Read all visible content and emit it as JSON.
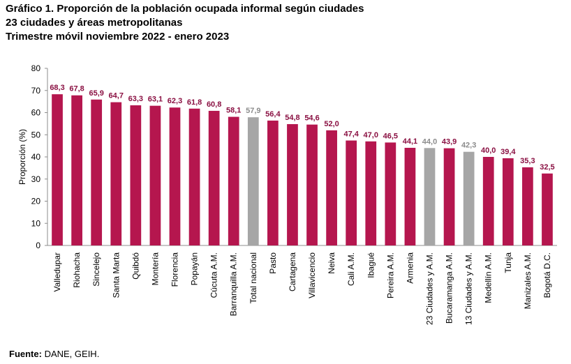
{
  "chart_data": {
    "type": "bar",
    "title": "Gráfico 1. Proporción de la población ocupada informal según ciudades",
    "subtitle_1": "23 ciudades y áreas metropolitanas",
    "subtitle_2": "Trimestre móvil noviembre 2022 - enero 2023",
    "xlabel": "",
    "ylabel": "Proporción (%)",
    "ylim": [
      0,
      80
    ],
    "yticks": [
      "0",
      "10",
      "20",
      "30",
      "40",
      "50",
      "60",
      "70",
      "80"
    ],
    "grid": false,
    "legend": "none",
    "colors": {
      "city": "#B5164E",
      "aggregate": "#A6A6A6",
      "city_label": "#8A1042",
      "aggregate_label": "#8C8C8C"
    },
    "categories": [
      "Valledupar",
      "Riohacha",
      "Sincelejo",
      "Santa Marta",
      "Quibdó",
      "Montería",
      "Florencia",
      "Popayán",
      "Cúcuta A.M.",
      "Barranquilla A.M.",
      "Total nacional",
      "Pasto",
      "Cartagena",
      "Villavicencio",
      "Neiva",
      "Cali A.M.",
      "Ibagué",
      "Pereira A.M.",
      "Armenia",
      "23 Ciudades y A.M.",
      "Bucaramanga A.M.",
      "13 Ciudades y A.M.",
      "Medellín A.M.",
      "Tunja",
      "Manizales A.M.",
      "Bogotá D.C."
    ],
    "values": [
      68.3,
      67.8,
      65.9,
      64.7,
      63.3,
      63.1,
      62.3,
      61.8,
      60.8,
      58.1,
      57.9,
      56.4,
      54.8,
      54.6,
      52.0,
      47.4,
      47.0,
      46.5,
      44.1,
      44.0,
      43.9,
      42.3,
      40.0,
      39.4,
      35.3,
      32.5
    ],
    "value_labels": [
      "68,3",
      "67,8",
      "65,9",
      "64,7",
      "63,3",
      "63,1",
      "62,3",
      "61,8",
      "60,8",
      "58,1",
      "57,9",
      "56,4",
      "54,8",
      "54,6",
      "52,0",
      "47,4",
      "47,0",
      "46,5",
      "44,1",
      "44,0",
      "43,9",
      "42,3",
      "40,0",
      "39,4",
      "35,3",
      "32,5"
    ],
    "aggregate_categories": [
      "Total nacional",
      "23 Ciudades y A.M.",
      "13 Ciudades y A.M."
    ]
  },
  "source": {
    "label": "Fuente:",
    "text": " DANE, GEIH."
  }
}
